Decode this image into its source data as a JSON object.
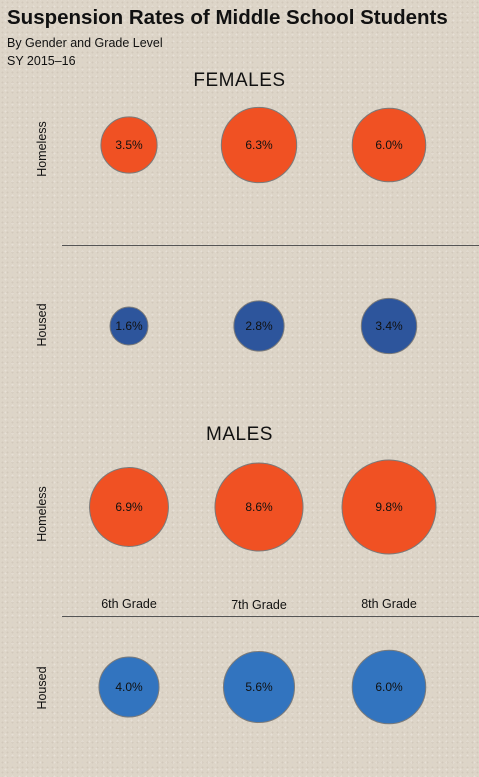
{
  "chart_data": {
    "type": "bubble",
    "title": "Suspension Rates of Middle School Students",
    "subtitles": [
      "By Gender and Grade Level",
      "SY 2015–16"
    ],
    "categories": [
      "6th Grade",
      "7th Grade",
      "8th Grade"
    ],
    "sections": [
      {
        "name": "FEMALES",
        "rows": [
          {
            "name": "Homeless",
            "color": "#f05123",
            "values": [
              3.5,
              6.3,
              6.0
            ],
            "labels": [
              "3.5%",
              "6.3%",
              "6.0%"
            ]
          },
          {
            "name": "Housed",
            "color": "#2d559c",
            "values": [
              1.6,
              2.8,
              3.4
            ],
            "labels": [
              "1.6%",
              "2.8%",
              "3.4%"
            ]
          }
        ]
      },
      {
        "name": "MALES",
        "rows": [
          {
            "name": "Homeless",
            "color": "#f05123",
            "values": [
              6.9,
              8.6,
              9.8
            ],
            "labels": [
              "6.9%",
              "8.6%",
              "9.8%"
            ]
          },
          {
            "name": "Housed",
            "color": "#3274bf",
            "values": [
              4.0,
              5.6,
              6.0
            ],
            "labels": [
              "4.0%",
              "5.6%",
              "6.0%"
            ]
          }
        ]
      }
    ],
    "unit": "%"
  }
}
